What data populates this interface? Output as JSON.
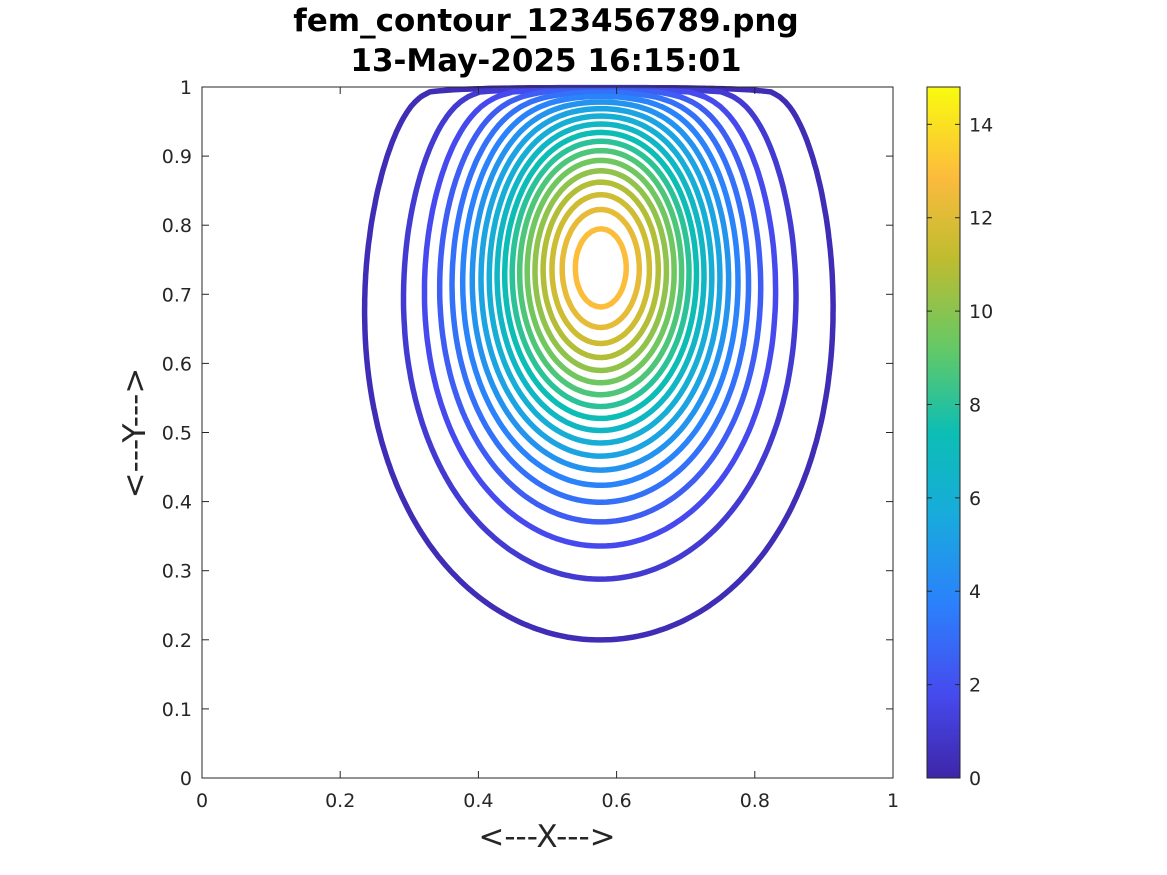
{
  "chart_data": {
    "type": "contour",
    "title": [
      "fem_contour_123456789.png",
      "13-May-2025 16:15:01"
    ],
    "xlabel": "<---X--->",
    "ylabel": "<---Y--->",
    "xlim": [
      0,
      1
    ],
    "ylim": [
      0,
      1
    ],
    "xticks": [
      0,
      0.2,
      0.4,
      0.6,
      0.8,
      1
    ],
    "xtick_labels": [
      "0",
      "0.2",
      "0.4",
      "0.6",
      "0.8",
      "1"
    ],
    "yticks": [
      0,
      0.1,
      0.2,
      0.3,
      0.4,
      0.5,
      0.6,
      0.7,
      0.8,
      0.9,
      1
    ],
    "ytick_labels": [
      "0",
      "0.1",
      "0.2",
      "0.3",
      "0.4",
      "0.5",
      "0.6",
      "0.7",
      "0.8",
      "0.9",
      "1"
    ],
    "grid": false,
    "colormap": "parula",
    "colorbar": {
      "position": "right",
      "clim": [
        0,
        14.8
      ],
      "ticks": [
        0,
        2,
        4,
        6,
        8,
        10,
        12,
        14
      ],
      "tick_labels": [
        "0",
        "2",
        "4",
        "6",
        "8",
        "10",
        "12",
        "14"
      ]
    },
    "peak": {
      "x": 0.58,
      "y": 0.77,
      "value": 14.8
    },
    "contour_levels": [
      0.35,
      1.05,
      1.75,
      2.45,
      3.15,
      3.85,
      4.55,
      5.25,
      5.95,
      6.65,
      7.35,
      8.05,
      8.75,
      9.45,
      10.15,
      10.85,
      11.55,
      12.25,
      12.95,
      13.65,
      14.35
    ]
  }
}
